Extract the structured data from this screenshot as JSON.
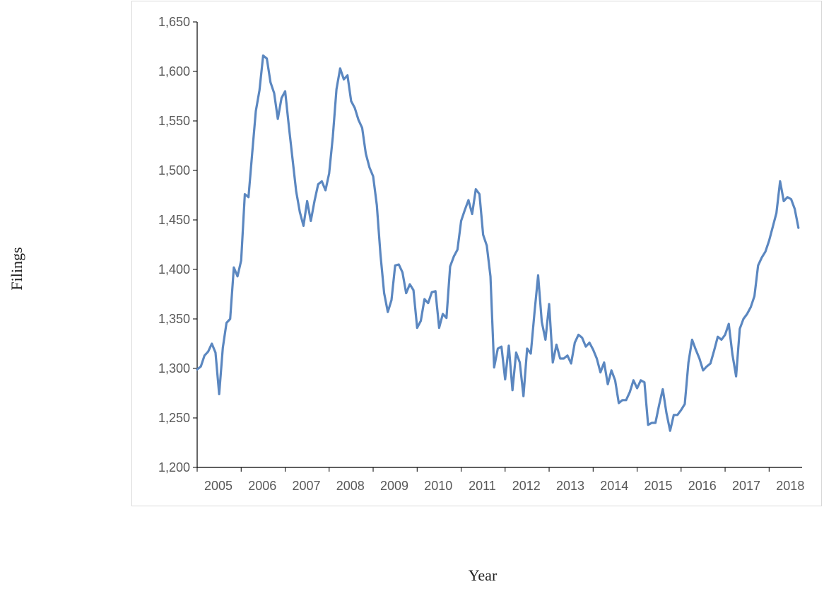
{
  "chart_data": {
    "type": "line",
    "title": "",
    "xlabel": "Year",
    "ylabel": "Filings",
    "ylim": [
      1200,
      1650
    ],
    "yticks": [
      1200,
      1250,
      1300,
      1350,
      1400,
      1450,
      1500,
      1550,
      1600,
      1650
    ],
    "ytick_labels": [
      "1,200",
      "1,250",
      "1,300",
      "1,350",
      "1,400",
      "1,450",
      "1,500",
      "1,550",
      "1,600",
      "1,650"
    ],
    "xlim": [
      2005,
      2018.75
    ],
    "xticks": [
      2005,
      2006,
      2007,
      2008,
      2009,
      2010,
      2011,
      2012,
      2013,
      2014,
      2015,
      2016,
      2017,
      2018
    ],
    "xtick_labels": [
      "2005",
      "2006",
      "2007",
      "2008",
      "2009",
      "2010",
      "2011",
      "2012",
      "2013",
      "2014",
      "2015",
      "2016",
      "2017",
      "2018"
    ],
    "grid": false,
    "legend": "none",
    "line_color": "#5b87c0",
    "series": [
      {
        "values": [
          1299,
          1302,
          1313,
          1317,
          1325,
          1316,
          1274,
          1321,
          1346,
          1350,
          1402,
          1393,
          1409,
          1476,
          1473,
          1517,
          1560,
          1581,
          1616,
          1613,
          1589,
          1578,
          1552,
          1573,
          1580,
          1545,
          1512,
          1479,
          1458,
          1444,
          1469,
          1449,
          1469,
          1486,
          1489,
          1480,
          1497,
          1534,
          1582,
          1603,
          1592,
          1596,
          1570,
          1563,
          1551,
          1543,
          1517,
          1503,
          1494,
          1465,
          1415,
          1376,
          1357,
          1369,
          1404,
          1405,
          1397,
          1376,
          1385,
          1379,
          1341,
          1348,
          1370,
          1366,
          1377,
          1378,
          1341,
          1355,
          1351,
          1403,
          1413,
          1420,
          1449,
          1460,
          1470,
          1456,
          1481,
          1476,
          1435,
          1424,
          1393,
          1301,
          1320,
          1322,
          1289,
          1323,
          1278,
          1316,
          1306,
          1272,
          1320,
          1315,
          1356,
          1394,
          1347,
          1329,
          1365,
          1306,
          1324,
          1310,
          1310,
          1313,
          1305,
          1326,
          1334,
          1331,
          1322,
          1326,
          1319,
          1310,
          1296,
          1306,
          1284,
          1298,
          1288,
          1265,
          1268,
          1268,
          1276,
          1288,
          1280,
          1288,
          1286,
          1243,
          1245,
          1245,
          1263,
          1279,
          1255,
          1237,
          1253,
          1253,
          1258,
          1264,
          1306,
          1329,
          1319,
          1310,
          1298,
          1302,
          1305,
          1318,
          1332,
          1329,
          1334,
          1345,
          1314,
          1292,
          1340,
          1350,
          1355,
          1362,
          1373,
          1404,
          1412,
          1418,
          1429,
          1443,
          1457,
          1489,
          1469,
          1473,
          1471,
          1461,
          1442
        ]
      }
    ]
  }
}
